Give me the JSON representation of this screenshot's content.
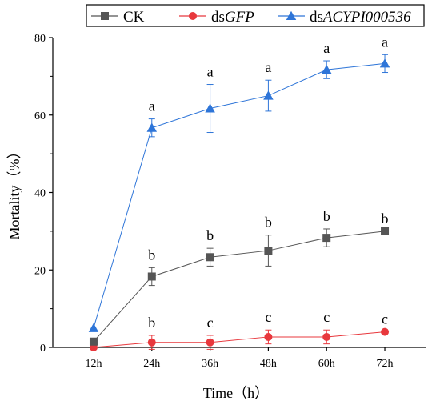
{
  "chart_data": {
    "type": "line",
    "xlabel": "Time（h）",
    "ylabel": "Mortality（%）",
    "categories": [
      "12h",
      "24h",
      "36h",
      "48h",
      "60h",
      "72h"
    ],
    "ylim": [
      0,
      80
    ],
    "yticks": [
      0,
      20,
      40,
      60,
      80
    ],
    "grid": false,
    "legend_position": "top",
    "series": [
      {
        "name": "CK",
        "name_prefix": "CK",
        "name_italic": "",
        "color": "#555555",
        "marker": "square",
        "values": [
          1.5,
          18.3,
          23.3,
          25.0,
          28.3,
          30.0
        ],
        "errors": [
          0.0,
          2.3,
          2.3,
          4.0,
          2.3,
          0.0
        ],
        "sig": [
          "",
          "b",
          "b",
          "b",
          "b",
          "b"
        ]
      },
      {
        "name": "dsGFP",
        "name_prefix": "ds",
        "name_italic": "GFP",
        "color": "#e8383d",
        "marker": "circle",
        "values": [
          0.0,
          1.3,
          1.3,
          2.7,
          2.7,
          4.0
        ],
        "errors": [
          0.0,
          1.8,
          1.8,
          1.8,
          1.8,
          0.0
        ],
        "sig": [
          "",
          "b",
          "c",
          "c",
          "c",
          "c"
        ]
      },
      {
        "name": "dsACYPI000536",
        "name_prefix": "ds",
        "name_italic": "ACYPI000536",
        "color": "#2e75d8",
        "marker": "triangle",
        "values": [
          5.0,
          56.7,
          61.7,
          65.0,
          71.7,
          73.3
        ],
        "errors": [
          0.0,
          2.3,
          6.2,
          4.0,
          2.3,
          2.3
        ],
        "sig": [
          "",
          "a",
          "a",
          "a",
          "a",
          "a"
        ]
      }
    ]
  }
}
